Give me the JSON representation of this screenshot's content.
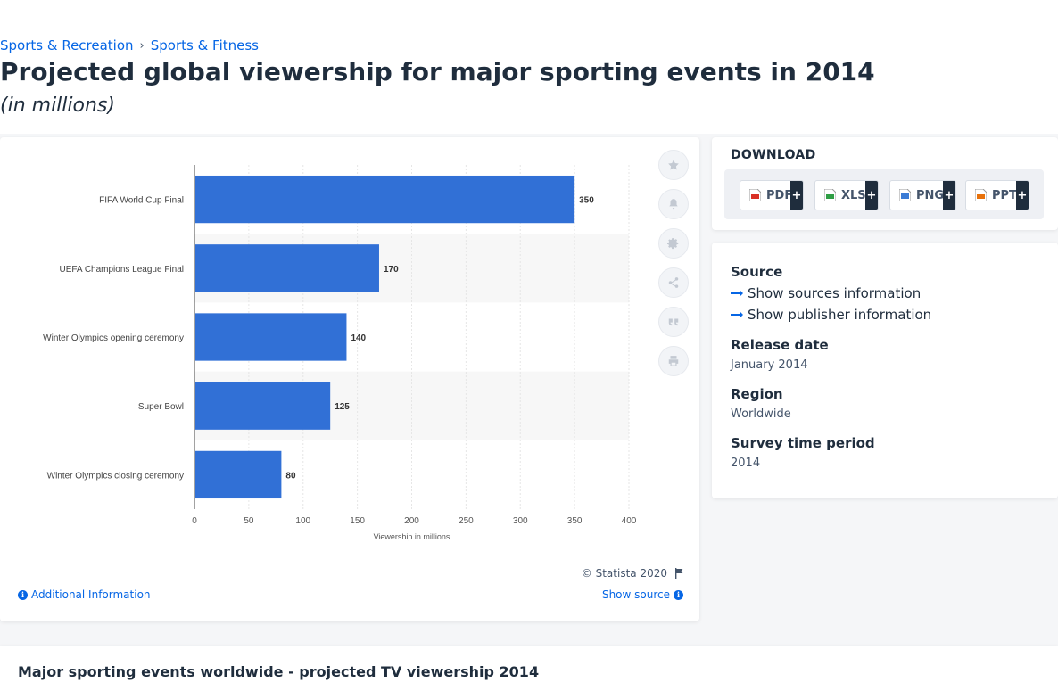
{
  "breadcrumb": {
    "items": [
      "Sports & Recreation",
      "Sports & Fitness"
    ],
    "separator": "›"
  },
  "page": {
    "title": "Projected global viewership for major sporting events in 2014",
    "subtitle": "(in millions)"
  },
  "chart_data": {
    "type": "bar",
    "orientation": "horizontal",
    "categories": [
      "FIFA World Cup Final",
      "UEFA Champions League Final",
      "Winter Olympics opening ceremony",
      "Super Bowl",
      "Winter Olympics closing ceremony"
    ],
    "values": [
      350,
      170,
      140,
      125,
      80
    ],
    "xlabel": "Viewership in millions",
    "ylabel": "",
    "xlim": [
      0,
      400
    ],
    "xticks": [
      0,
      50,
      100,
      150,
      200,
      250,
      300,
      350,
      400
    ],
    "grid": true,
    "bar_color": "#3170d6",
    "data_labels": true
  },
  "chart_footer": {
    "copyright": "© Statista 2020",
    "additional_info": "Additional Information",
    "show_source": "Show source"
  },
  "tools": [
    "star-icon",
    "bell-icon",
    "gear-icon",
    "share-icon",
    "quote-icon",
    "print-icon"
  ],
  "download": {
    "heading": "DOWNLOAD",
    "buttons": [
      {
        "label": "PDF",
        "icon": "pdf-file-icon",
        "color": "#d93025"
      },
      {
        "label": "XLS",
        "icon": "xls-file-icon",
        "color": "#2e9e44"
      },
      {
        "label": "PNG",
        "icon": "png-file-icon",
        "color": "#3a7bd5"
      },
      {
        "label": "PPT",
        "icon": "ppt-file-icon",
        "color": "#e8710a"
      }
    ],
    "plus": "+"
  },
  "info": {
    "source_label": "Source",
    "show_sources": "Show sources information",
    "show_publisher": "Show publisher information",
    "release_label": "Release date",
    "release_value": "January 2014",
    "region_label": "Region",
    "region_value": "Worldwide",
    "survey_label": "Survey time period",
    "survey_value": "2014"
  },
  "bottom": {
    "title": "Major sporting events worldwide - projected TV viewership 2014"
  }
}
